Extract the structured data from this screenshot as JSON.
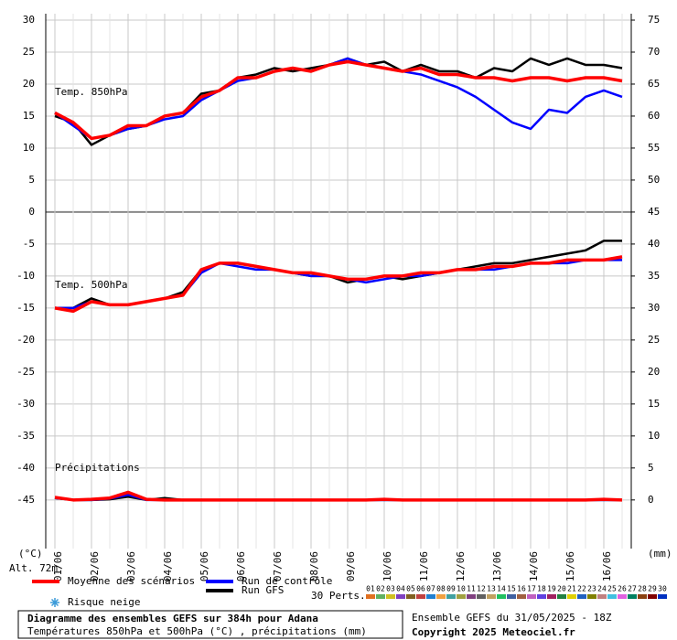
{
  "chart_data": {
    "type": "line",
    "title": "Diagramme des ensembles GEFS sur 384h pour Adana",
    "subtitle": "Températures 850hPa et 500hPa (°C) , précipitations (mm)",
    "run_label": "Ensemble GEFS du 31/05/2025 - 18Z",
    "copyright": "Copyright 2025 Meteociel.fr",
    "y_label": "(°C)",
    "y2_label": "(mm)",
    "altitude": "Alt. 72m",
    "panel_labels": {
      "t850": "Temp. 850hPa",
      "t500": "Temp. 500hPa",
      "precip": "Précipitations"
    },
    "snow_label": "Risque neige",
    "categories": [
      "01/06",
      null,
      "02/06",
      null,
      "03/06",
      null,
      "04/06",
      null,
      "05/06",
      null,
      "06/06",
      null,
      "07/06",
      null,
      "08/06",
      null,
      "09/06",
      null,
      "10/06",
      null,
      "11/06",
      null,
      "12/06",
      null,
      "13/06",
      null,
      "14/06",
      null,
      "15/06",
      null,
      "16/06",
      null
    ],
    "ylim": [
      -52.6,
      31
    ],
    "yticks": [
      30,
      25,
      20,
      15,
      10,
      5,
      0,
      -5,
      -10,
      -15,
      -20,
      -25,
      -30,
      -35,
      -40,
      -45
    ],
    "y2lim": [
      -7.6,
      76
    ],
    "y2ticks": [
      75,
      70,
      65,
      60,
      55,
      50,
      45,
      40,
      35,
      30,
      25,
      20,
      15,
      10,
      5,
      0
    ],
    "grid": true,
    "series": [
      {
        "name": "Moyenne des scénarios",
        "color": "#ff0000",
        "width": 3.5,
        "t850": [
          15.5,
          14,
          11.5,
          12,
          13.5,
          13.5,
          15,
          15.5,
          18,
          19,
          21,
          21,
          22,
          22.5,
          22,
          23,
          23.5,
          23,
          22.5,
          22,
          22.5,
          21.5,
          21.5,
          21,
          21,
          20.5,
          21,
          21,
          20.5,
          21,
          21,
          20.5
        ],
        "t500": [
          -15,
          -15.5,
          -14,
          -14.5,
          -14.5,
          -14,
          -13.5,
          -13,
          -9,
          -8,
          -8,
          -8.5,
          -9,
          -9.5,
          -9.5,
          -10,
          -10.5,
          -10.5,
          -10,
          -10,
          -9.5,
          -9.5,
          -9,
          -9,
          -8.5,
          -8.5,
          -8,
          -8,
          -7.5,
          -7.5,
          -7.5,
          -7
        ],
        "precip": [
          0.4,
          0,
          0.1,
          0.3,
          1.2,
          0.1,
          0,
          0,
          0,
          0,
          0,
          0,
          0,
          0,
          0,
          0,
          0,
          0,
          0.1,
          0,
          0,
          0,
          0,
          0,
          0,
          0,
          0,
          0,
          0,
          0,
          0.1,
          0
        ]
      },
      {
        "name": "Run de contrôle",
        "color": "#0000ff",
        "width": 2.5,
        "t850": [
          15.5,
          13.5,
          11.5,
          12,
          13,
          13.5,
          14.5,
          15,
          17.5,
          19,
          20.5,
          21,
          22,
          22.5,
          22,
          23,
          24,
          23,
          22.5,
          22,
          21.5,
          20.5,
          19.5,
          18,
          16,
          14,
          13,
          16,
          15.5,
          18,
          19,
          18
        ],
        "t500": [
          -15,
          -15,
          -14,
          -14.5,
          -14.5,
          -14,
          -13.5,
          -13,
          -9.5,
          -8,
          -8.5,
          -9,
          -9,
          -9.5,
          -10,
          -10,
          -10.5,
          -11,
          -10.5,
          -10,
          -10,
          -9.5,
          -9,
          -9,
          -9,
          -8.5,
          -8,
          -8,
          -8,
          -7.5,
          -7.5,
          -7.5
        ],
        "precip": [
          0.3,
          0,
          0,
          0.2,
          0.8,
          0,
          0,
          0,
          0,
          0,
          0,
          0,
          0,
          0,
          0,
          0,
          0,
          0,
          0,
          0,
          0,
          0,
          0,
          0,
          0,
          0,
          0,
          0,
          0,
          0,
          0,
          0
        ]
      },
      {
        "name": "Run GFS",
        "color": "#000000",
        "width": 2.5,
        "t850": [
          15,
          14,
          10.5,
          12,
          13,
          13.5,
          15,
          15.5,
          18.5,
          19,
          21,
          21.5,
          22.5,
          22,
          22.5,
          23,
          24,
          23,
          23.5,
          22,
          23,
          22,
          22,
          21,
          22.5,
          22,
          24,
          23,
          24,
          23,
          23,
          22.5
        ],
        "t500": [
          -15,
          -15,
          -13.5,
          -14.5,
          -14.5,
          -14,
          -13.5,
          -12.5,
          -9,
          -8,
          -8,
          -8.5,
          -9,
          -9.5,
          -10,
          -10,
          -11,
          -10.5,
          -10,
          -10.5,
          -10,
          -9.5,
          -9,
          -8.5,
          -8,
          -8,
          -7.5,
          -7,
          -6.5,
          -6,
          -4.5,
          -4.5
        ],
        "precip": [
          0.3,
          0,
          0,
          0.1,
          0.5,
          0,
          0.3,
          0,
          0,
          0,
          0,
          0,
          0,
          0,
          0,
          0,
          0,
          0,
          0,
          0,
          0,
          0,
          0,
          0,
          0,
          0,
          0,
          0,
          0,
          0,
          0,
          0
        ]
      }
    ],
    "perturbations": {
      "label": "30 Perts.",
      "items": [
        {
          "label": "01",
          "color": "#e07020"
        },
        {
          "label": "02",
          "color": "#60b060"
        },
        {
          "label": "03",
          "color": "#d0c020"
        },
        {
          "label": "04",
          "color": "#8040c0"
        },
        {
          "label": "05",
          "color": "#806020"
        },
        {
          "label": "06",
          "color": "#c04040"
        },
        {
          "label": "07",
          "color": "#2080d0"
        },
        {
          "label": "08",
          "color": "#f0a040"
        },
        {
          "label": "09",
          "color": "#40a0a0"
        },
        {
          "label": "10",
          "color": "#a0a040"
        },
        {
          "label": "11",
          "color": "#804080"
        },
        {
          "label": "12",
          "color": "#606060"
        },
        {
          "label": "13",
          "color": "#c0a060"
        },
        {
          "label": "14",
          "color": "#20c060"
        },
        {
          "label": "15",
          "color": "#4060a0"
        },
        {
          "label": "16",
          "color": "#a06040"
        },
        {
          "label": "17",
          "color": "#c060c0"
        },
        {
          "label": "18",
          "color": "#6040e0"
        },
        {
          "label": "19",
          "color": "#a02060"
        },
        {
          "label": "20",
          "color": "#208040"
        },
        {
          "label": "21",
          "color": "#e0d000"
        },
        {
          "label": "22",
          "color": "#2060c0"
        },
        {
          "label": "23",
          "color": "#808000"
        },
        {
          "label": "24",
          "color": "#c08080"
        },
        {
          "label": "25",
          "color": "#40c0e0"
        },
        {
          "label": "26",
          "color": "#e060e0"
        },
        {
          "label": "27",
          "color": "#008060"
        },
        {
          "label": "28",
          "color": "#8a4010"
        },
        {
          "label": "29",
          "color": "#800000"
        },
        {
          "label": "30",
          "color": "#0030c0"
        }
      ]
    }
  }
}
